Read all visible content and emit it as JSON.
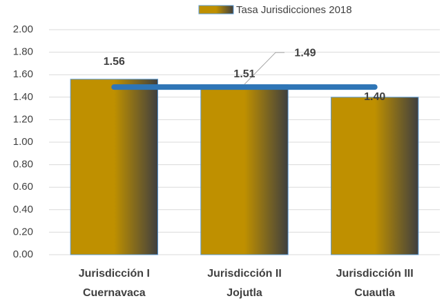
{
  "chart_data": {
    "type": "bar",
    "categories": [
      [
        "Jurisdicción I",
        "Cuernavaca"
      ],
      [
        "Jurisdicción II",
        "Jojutla"
      ],
      [
        "Jurisdicción III",
        "Cuautla"
      ]
    ],
    "series": [
      {
        "name": "Tasa Jurisdicciones 2018",
        "color": "#bf9000",
        "values": [
          1.56,
          1.51,
          1.4
        ],
        "value_labels": [
          "1.56",
          "1.51",
          "1.40"
        ]
      }
    ],
    "reference_line": {
      "value": 1.49,
      "label": "1.49",
      "color": "#2e75b6"
    },
    "ylim": [
      0,
      2
    ],
    "yticks": [
      {
        "value": 0,
        "label": "0.00"
      },
      {
        "value": 0.2,
        "label": "0.20"
      },
      {
        "value": 0.4,
        "label": "0.40"
      },
      {
        "value": 0.6,
        "label": "0.60"
      },
      {
        "value": 0.8,
        "label": "0.80"
      },
      {
        "value": 1,
        "label": "1.00"
      },
      {
        "value": 1.2,
        "label": "1.20"
      },
      {
        "value": 1.4,
        "label": "1.40"
      },
      {
        "value": 1.6,
        "label": "1.60"
      },
      {
        "value": 1.8,
        "label": "1.80"
      },
      {
        "value": 2,
        "label": "2.00"
      }
    ],
    "grid": true,
    "legend": "top"
  }
}
